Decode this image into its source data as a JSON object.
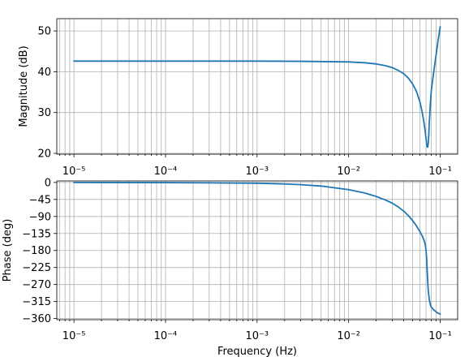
{
  "chart_data": [
    {
      "type": "line",
      "title": "",
      "xlabel": "",
      "ylabel": "Magnitude (dB)",
      "xscale": "log",
      "xlim": [
        6.5e-06,
        0.155
      ],
      "ylim": [
        19.8,
        53
      ],
      "grid": "on (major and minor)",
      "x_tick_labels": [
        "10⁻⁵",
        "10⁻⁴",
        "10⁻³",
        "10⁻²",
        "10⁻¹"
      ],
      "y_ticks": [
        20,
        30,
        40,
        50
      ],
      "y_tick_labels": [
        "20",
        "30",
        "40",
        "50"
      ],
      "series": [
        {
          "color": "#1f77b4",
          "x": [
            1e-05,
            0.0001,
            0.001,
            0.003,
            0.01,
            0.015,
            0.02,
            0.025,
            0.03,
            0.035,
            0.04,
            0.045,
            0.05,
            0.055,
            0.06,
            0.063,
            0.066,
            0.068,
            0.07,
            0.071,
            0.072,
            0.073,
            0.074,
            0.075,
            0.076,
            0.078,
            0.08,
            0.085,
            0.09,
            0.095,
            0.1
          ],
          "y": [
            42.6,
            42.6,
            42.6,
            42.55,
            42.4,
            42.2,
            41.9,
            41.5,
            41.0,
            40.3,
            39.5,
            38.4,
            37.0,
            35.2,
            32.6,
            30.5,
            28.0,
            26.0,
            23.6,
            22.5,
            21.6,
            21.5,
            22.4,
            24.5,
            27.5,
            32.0,
            35.5,
            40.0,
            44.0,
            47.8,
            51.0
          ]
        }
      ]
    },
    {
      "type": "line",
      "title": "",
      "xlabel": "Frequency (Hz)",
      "ylabel": "Phase (deg)",
      "xscale": "log",
      "xlim": [
        6.5e-06,
        0.155
      ],
      "ylim": [
        -363,
        4
      ],
      "grid": "on (major and minor)",
      "x_tick_labels": [
        "10⁻⁵",
        "10⁻⁴",
        "10⁻³",
        "10⁻²",
        "10⁻¹"
      ],
      "y_ticks": [
        0,
        -45,
        -90,
        -135,
        -180,
        -225,
        -270,
        -315,
        -360
      ],
      "y_tick_labels": [
        "0",
        "−45",
        "−90",
        "−135",
        "−180",
        "−225",
        "−270",
        "−315",
        "−360"
      ],
      "series": [
        {
          "color": "#1f77b4",
          "x": [
            1e-05,
            0.0001,
            0.0003,
            0.001,
            0.002,
            0.003,
            0.005,
            0.01,
            0.015,
            0.02,
            0.025,
            0.03,
            0.035,
            0.04,
            0.045,
            0.05,
            0.055,
            0.06,
            0.064,
            0.066,
            0.068,
            0.069,
            0.07,
            0.071,
            0.072,
            0.073,
            0.074,
            0.076,
            0.078,
            0.08,
            0.085,
            0.09,
            0.095,
            0.1
          ],
          "y": [
            0,
            -0.4,
            -1,
            -2,
            -4,
            -6,
            -9.5,
            -19,
            -28,
            -37,
            -46,
            -55,
            -65,
            -76,
            -88,
            -101,
            -115,
            -130,
            -143,
            -151,
            -160,
            -168,
            -180,
            -200,
            -230,
            -260,
            -285,
            -310,
            -323,
            -330,
            -337,
            -342,
            -346,
            -348
          ]
        }
      ]
    }
  ]
}
